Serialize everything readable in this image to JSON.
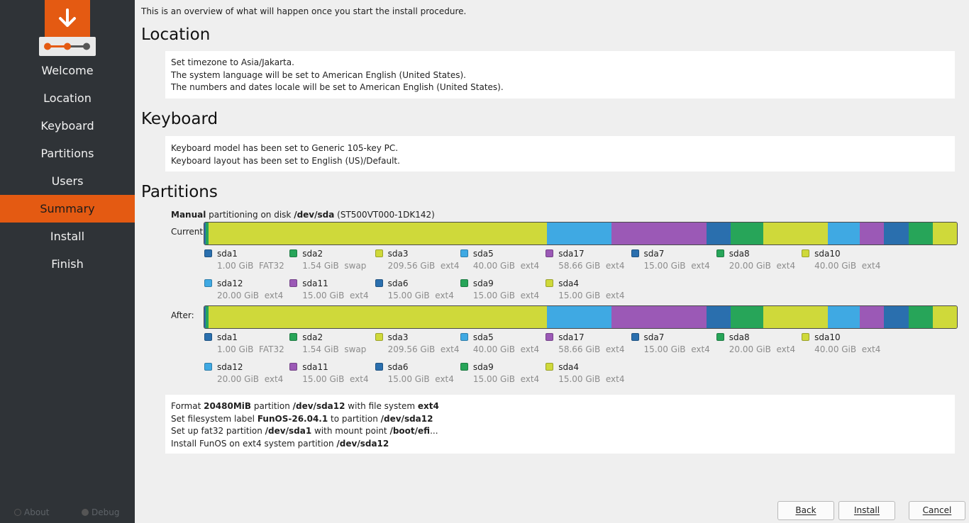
{
  "sidebar": {
    "steps": [
      "Welcome",
      "Location",
      "Keyboard",
      "Partitions",
      "Users",
      "Summary",
      "Install",
      "Finish"
    ],
    "active_step": "Summary",
    "about_label": "About",
    "debug_label": "Debug"
  },
  "intro_text": "This is an overview of what will happen once you start the install procedure.",
  "location": {
    "title": "Location",
    "lines": [
      "Set timezone to Asia/Jakarta.",
      "The system language will be set to American English (United States).",
      "The numbers and dates locale will be set to American English (United States)."
    ]
  },
  "keyboard": {
    "title": "Keyboard",
    "lines": [
      "Keyboard model has been set to Generic 105-key PC.",
      "Keyboard layout has been set to English (US)/Default."
    ]
  },
  "partitions": {
    "title": "Partitions",
    "mode_bold": "Manual",
    "mode_text": " partitioning on disk ",
    "disk_bold": "/dev/sda",
    "disk_model": " (ST500VT000-1DK142)",
    "current_label": "Current:",
    "after_label": "After:",
    "items": [
      {
        "name": "sda1",
        "size": "1.00 GiB",
        "fs": "FAT32",
        "color": "#2a6fae",
        "gib": 1.0
      },
      {
        "name": "sda2",
        "size": "1.54 GiB",
        "fs": "swap",
        "color": "#27a559",
        "gib": 1.54
      },
      {
        "name": "sda3",
        "size": "209.56 GiB",
        "fs": "ext4",
        "color": "#cfd93a",
        "gib": 209.56
      },
      {
        "name": "sda5",
        "size": "40.00 GiB",
        "fs": "ext4",
        "color": "#3fa9e3",
        "gib": 40.0
      },
      {
        "name": "sda17",
        "size": "58.66 GiB",
        "fs": "ext4",
        "color": "#9b59b6",
        "gib": 58.66
      },
      {
        "name": "sda7",
        "size": "15.00 GiB",
        "fs": "ext4",
        "color": "#2a6fae",
        "gib": 15.0
      },
      {
        "name": "sda8",
        "size": "20.00 GiB",
        "fs": "ext4",
        "color": "#27a559",
        "gib": 20.0
      },
      {
        "name": "sda10",
        "size": "40.00 GiB",
        "fs": "ext4",
        "color": "#cfd93a",
        "gib": 40.0
      },
      {
        "name": "sda12",
        "size": "20.00 GiB",
        "fs": "ext4",
        "color": "#3fa9e3",
        "gib": 20.0
      },
      {
        "name": "sda11",
        "size": "15.00 GiB",
        "fs": "ext4",
        "color": "#9b59b6",
        "gib": 15.0
      },
      {
        "name": "sda6",
        "size": "15.00 GiB",
        "fs": "ext4",
        "color": "#2a6fae",
        "gib": 15.0
      },
      {
        "name": "sda9",
        "size": "15.00 GiB",
        "fs": "ext4",
        "color": "#27a559",
        "gib": 15.0
      },
      {
        "name": "sda4",
        "size": "15.00 GiB",
        "fs": "ext4",
        "color": "#cfd93a",
        "gib": 15.0
      }
    ],
    "operations": [
      [
        "Format ",
        "20480MiB",
        " partition ",
        "/dev/sda12",
        " with file system ",
        "ext4"
      ],
      [
        "Set filesystem label ",
        "FunOS-26.04.1",
        " to partition ",
        "/dev/sda12"
      ],
      [
        "Set up fat32 partition ",
        "/dev/sda1",
        " with mount point ",
        "/boot/efi",
        "..."
      ],
      [
        "Install FunOS on ext4 system partition ",
        "/dev/sda12"
      ]
    ]
  },
  "buttons": {
    "back": "Back",
    "install": "Install",
    "cancel": "Cancel"
  },
  "colors": {
    "accent": "#e45a12",
    "sidebar_bg": "#2f3337"
  }
}
